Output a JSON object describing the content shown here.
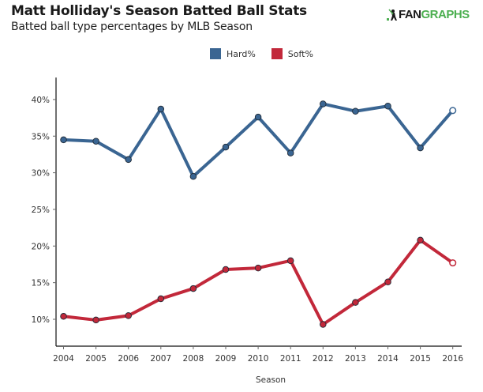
{
  "header": {
    "title": "Matt Holliday's Season Batted Ball Stats",
    "subtitle": "Batted ball type percentages by MLB Season",
    "logo_part1": "FAN",
    "logo_part2": "GRAPHS"
  },
  "chart_data": {
    "type": "line",
    "title": "Matt Holliday's Season Batted Ball Stats",
    "subtitle": "Batted ball type percentages by MLB Season",
    "xlabel": "Season",
    "ylabel": "",
    "x": [
      2004,
      2005,
      2006,
      2007,
      2008,
      2009,
      2010,
      2011,
      2012,
      2013,
      2014,
      2015,
      2016
    ],
    "x_tick_labels": [
      "2004",
      "2005",
      "2006",
      "2007",
      "2008",
      "2009",
      "2010",
      "2011",
      "2012",
      "2013",
      "2014",
      "2015",
      "2016"
    ],
    "ylim": [
      8,
      43
    ],
    "y_ticks": [
      10,
      15,
      20,
      25,
      30,
      35,
      40
    ],
    "y_tick_labels": [
      "10%",
      "15%",
      "20%",
      "25%",
      "30%",
      "35%",
      "40%"
    ],
    "grid": false,
    "legend_position": "top-center",
    "series": [
      {
        "name": "Hard%",
        "color": "#3a6592",
        "values": [
          34.5,
          34.3,
          31.8,
          38.7,
          29.5,
          33.5,
          37.6,
          32.7,
          39.4,
          38.4,
          39.1,
          33.4,
          38.5
        ],
        "last_point_hollow": true
      },
      {
        "name": "Soft%",
        "color": "#c2283a",
        "values": [
          10.4,
          9.9,
          10.5,
          12.8,
          14.2,
          16.8,
          17.0,
          18.0,
          9.3,
          12.3,
          15.1,
          20.8,
          17.7
        ],
        "last_point_hollow": true
      }
    ]
  }
}
